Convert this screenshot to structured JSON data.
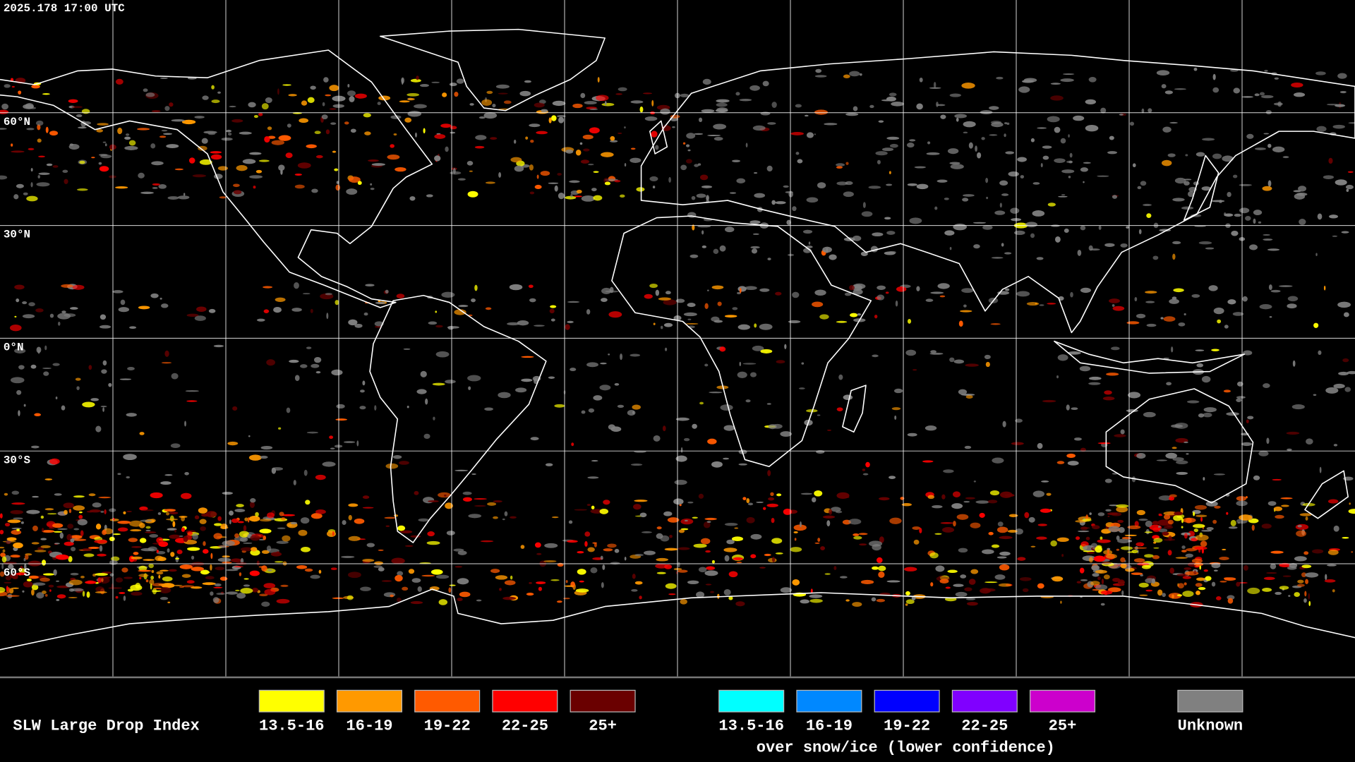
{
  "header": {
    "timestamp": "2025.178 17:00 UTC"
  },
  "map": {
    "latitude_labels": [
      "60°N",
      "30°N",
      "0°N",
      "30°S",
      "60°S"
    ]
  },
  "legend": {
    "title": "SLW Large Drop Index",
    "items": [
      {
        "label": "13.5-16",
        "color": "#ffff00"
      },
      {
        "label": "16-19",
        "color": "#ff9900"
      },
      {
        "label": "19-22",
        "color": "#ff5a00"
      },
      {
        "label": "22-25",
        "color": "#ff0000"
      },
      {
        "label": "25+",
        "color": "#6a0000"
      }
    ],
    "snow_ice_items": [
      {
        "label": "13.5-16",
        "color": "#00ffff"
      },
      {
        "label": "16-19",
        "color": "#0088ff"
      },
      {
        "label": "19-22",
        "color": "#0000ff"
      },
      {
        "label": "22-25",
        "color": "#8000ff"
      },
      {
        "label": "25+",
        "color": "#cc00cc"
      }
    ],
    "snow_ice_caption": "over snow/ice (lower confidence)",
    "unknown": {
      "label": "Unknown",
      "color": "#808080"
    }
  }
}
